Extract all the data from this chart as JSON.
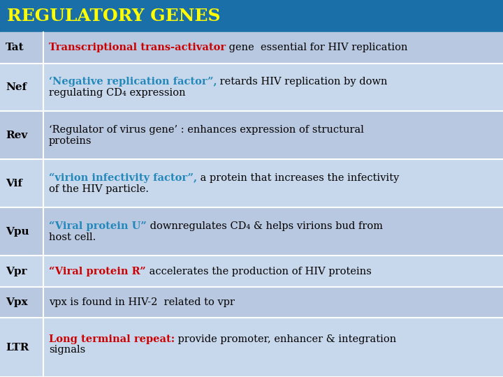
{
  "title": "REGULATORY GENES",
  "title_bg": "#1a6fa8",
  "title_color": "#ffff00",
  "header_font_size": 18,
  "row_bg_light": "#b8c8e0",
  "row_bg_dark": "#c5d5e8",
  "gene_col_color": "#000000",
  "body_font_size": 10.5,
  "gene_font_size": 11,
  "figsize": [
    7.2,
    5.4
  ],
  "dpi": 100,
  "rows": [
    {
      "gene": "Tat",
      "lines": [
        [
          {
            "text": "Transcriptional trans-activator",
            "color": "#cc0000",
            "bold": true
          },
          {
            "text": " gene  essential for HIV replication",
            "color": "#000000",
            "bold": false
          }
        ]
      ],
      "bg": "#b8c8e0"
    },
    {
      "gene": "Nef",
      "lines": [
        [
          {
            "text": "‘Negative replication factor”,",
            "color": "#2288bb",
            "bold": true
          },
          {
            "text": " retards HIV replication by down",
            "color": "#000000",
            "bold": false
          }
        ],
        [
          {
            "text": "regulating CD₄ expression",
            "color": "#000000",
            "bold": false
          }
        ]
      ],
      "bg": "#c8d8ec"
    },
    {
      "gene": "Rev",
      "lines": [
        [
          {
            "text": "‘Regulator of virus gene’ : enhances expression of structural",
            "color": "#000000",
            "bold": false
          }
        ],
        [
          {
            "text": "proteins",
            "color": "#000000",
            "bold": false
          }
        ]
      ],
      "bg": "#b8c8e0"
    },
    {
      "gene": "Vif",
      "lines": [
        [
          {
            "text": "“virion infectivity factor”,",
            "color": "#2288bb",
            "bold": true
          },
          {
            "text": " a protein that increases the infectivity",
            "color": "#000000",
            "bold": false
          }
        ],
        [
          {
            "text": "of the HIV particle.",
            "color": "#000000",
            "bold": false
          }
        ]
      ],
      "bg": "#c8d8ec"
    },
    {
      "gene": "Vpu",
      "lines": [
        [
          {
            "text": "“Viral protein U”",
            "color": "#2288bb",
            "bold": true
          },
          {
            "text": " downregulates CD₄ & helps virions bud from",
            "color": "#000000",
            "bold": false
          }
        ],
        [
          {
            "text": "host cell.",
            "color": "#000000",
            "bold": false
          }
        ]
      ],
      "bg": "#b8c8e0"
    },
    {
      "gene": "Vpr",
      "lines": [
        [
          {
            "text": "“Viral protein R”",
            "color": "#cc0000",
            "bold": true
          },
          {
            "text": " accelerates the production of HIV proteins",
            "color": "#000000",
            "bold": false
          }
        ]
      ],
      "bg": "#c8d8ec"
    },
    {
      "gene": "Vpx",
      "lines": [
        [
          {
            "text": "vpx is found in HIV-2  related to vpr",
            "color": "#000000",
            "bold": false
          }
        ]
      ],
      "bg": "#b8c8e0"
    },
    {
      "gene": "LTR",
      "lines": [
        [
          {
            "text": "Long terminal repeat:",
            "color": "#cc0000",
            "bold": true
          },
          {
            "text": " provide promoter, enhancer & integration",
            "color": "#000000",
            "bold": false
          }
        ],
        [
          {
            "text": "signals",
            "color": "#000000",
            "bold": false
          }
        ]
      ],
      "bg": "#c8d8ec",
      "extra_top_gap": true
    }
  ]
}
